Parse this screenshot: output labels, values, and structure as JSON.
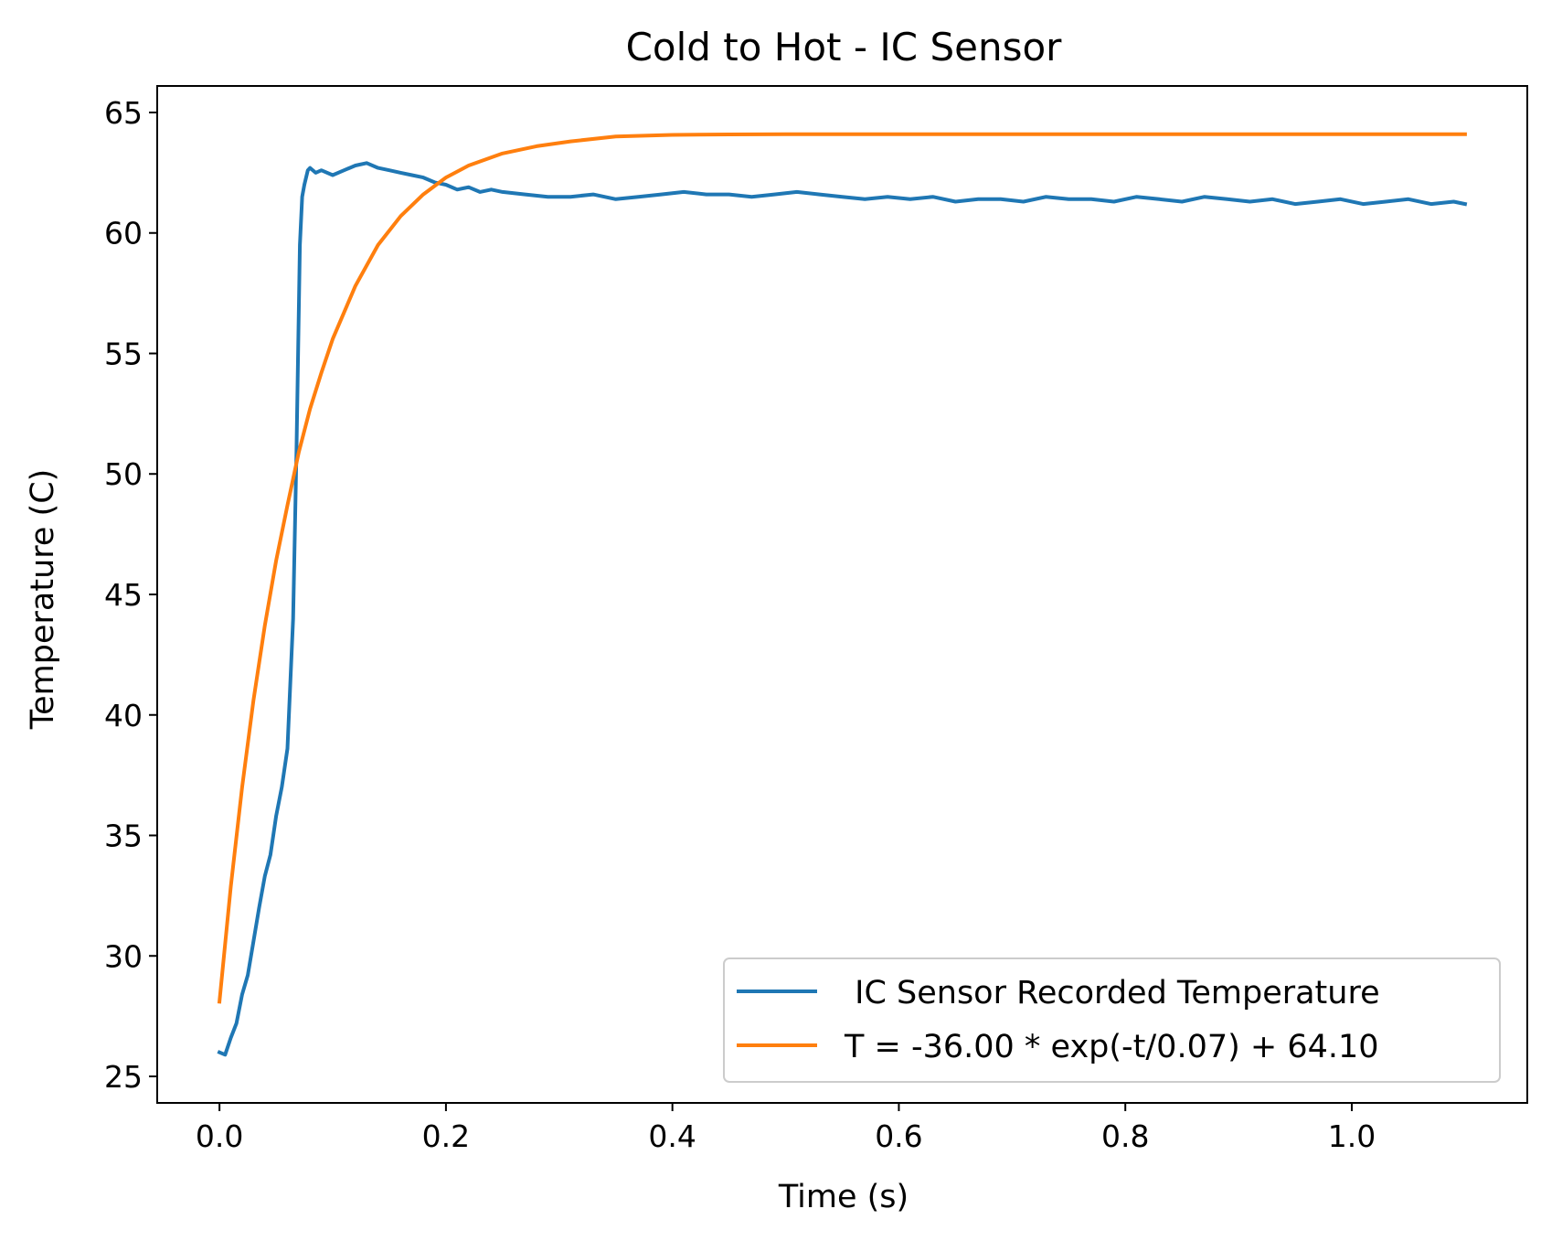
{
  "chart_data": {
    "type": "line",
    "title": "Cold to Hot - IC Sensor",
    "xlabel": "Time (s)",
    "ylabel": "Temperature (C)",
    "xlim": [
      -0.055,
      1.155
    ],
    "ylim": [
      23.9,
      66.1
    ],
    "xticks": [
      0.0,
      0.2,
      0.4,
      0.6,
      0.8,
      1.0
    ],
    "xtick_labels": [
      "0.0",
      "0.2",
      "0.4",
      "0.6",
      "0.8",
      "1.0"
    ],
    "yticks": [
      25,
      30,
      35,
      40,
      45,
      50,
      55,
      60,
      65
    ],
    "ytick_labels": [
      "25",
      "30",
      "35",
      "40",
      "45",
      "50",
      "55",
      "60",
      "65"
    ],
    "grid": false,
    "legend_position": "lower-right",
    "series": [
      {
        "name": " IC Sensor Recorded Temperature",
        "color": "#1f77b4",
        "x": [
          0.0,
          0.005,
          0.01,
          0.015,
          0.02,
          0.025,
          0.03,
          0.035,
          0.04,
          0.045,
          0.05,
          0.055,
          0.06,
          0.065,
          0.068,
          0.071,
          0.073,
          0.075,
          0.078,
          0.08,
          0.085,
          0.09,
          0.1,
          0.11,
          0.12,
          0.13,
          0.14,
          0.15,
          0.16,
          0.17,
          0.18,
          0.19,
          0.2,
          0.21,
          0.22,
          0.23,
          0.24,
          0.25,
          0.27,
          0.29,
          0.31,
          0.33,
          0.35,
          0.37,
          0.39,
          0.41,
          0.43,
          0.45,
          0.47,
          0.49,
          0.51,
          0.53,
          0.55,
          0.57,
          0.59,
          0.61,
          0.63,
          0.65,
          0.67,
          0.69,
          0.71,
          0.73,
          0.75,
          0.77,
          0.79,
          0.81,
          0.83,
          0.85,
          0.87,
          0.89,
          0.91,
          0.93,
          0.95,
          0.97,
          0.99,
          1.01,
          1.03,
          1.05,
          1.07,
          1.09,
          1.1
        ],
        "y": [
          26.0,
          25.9,
          26.6,
          27.2,
          28.4,
          29.2,
          30.6,
          32.0,
          33.3,
          34.2,
          35.8,
          37.0,
          38.6,
          44.0,
          51.0,
          59.5,
          61.5,
          62.0,
          62.6,
          62.7,
          62.5,
          62.6,
          62.4,
          62.6,
          62.8,
          62.9,
          62.7,
          62.6,
          62.5,
          62.4,
          62.3,
          62.1,
          62.0,
          61.8,
          61.9,
          61.7,
          61.8,
          61.7,
          61.6,
          61.5,
          61.5,
          61.6,
          61.4,
          61.5,
          61.6,
          61.7,
          61.6,
          61.6,
          61.5,
          61.6,
          61.7,
          61.6,
          61.5,
          61.4,
          61.5,
          61.4,
          61.5,
          61.3,
          61.4,
          61.4,
          61.3,
          61.5,
          61.4,
          61.4,
          61.3,
          61.5,
          61.4,
          61.3,
          61.5,
          61.4,
          61.3,
          61.4,
          61.2,
          61.3,
          61.4,
          61.2,
          61.3,
          61.4,
          61.2,
          61.3,
          61.2
        ]
      },
      {
        "name": "T = -36.00 * exp(-t/0.07) + 64.10",
        "color": "#ff7f0e",
        "x": [
          0.0,
          0.01,
          0.02,
          0.03,
          0.04,
          0.05,
          0.06,
          0.07,
          0.08,
          0.09,
          0.1,
          0.12,
          0.14,
          0.16,
          0.18,
          0.2,
          0.22,
          0.25,
          0.28,
          0.31,
          0.35,
          0.4,
          0.45,
          0.5,
          0.6,
          0.7,
          0.8,
          0.9,
          1.0,
          1.1
        ],
        "y": [
          28.1,
          32.87,
          37.0,
          40.6,
          43.7,
          46.4,
          48.7,
          50.9,
          52.7,
          54.2,
          55.6,
          57.8,
          59.5,
          60.7,
          61.6,
          62.3,
          62.8,
          63.3,
          63.6,
          63.8,
          64.0,
          64.07,
          64.09,
          64.1,
          64.1,
          64.1,
          64.1,
          64.1,
          64.1,
          64.1
        ]
      }
    ]
  }
}
